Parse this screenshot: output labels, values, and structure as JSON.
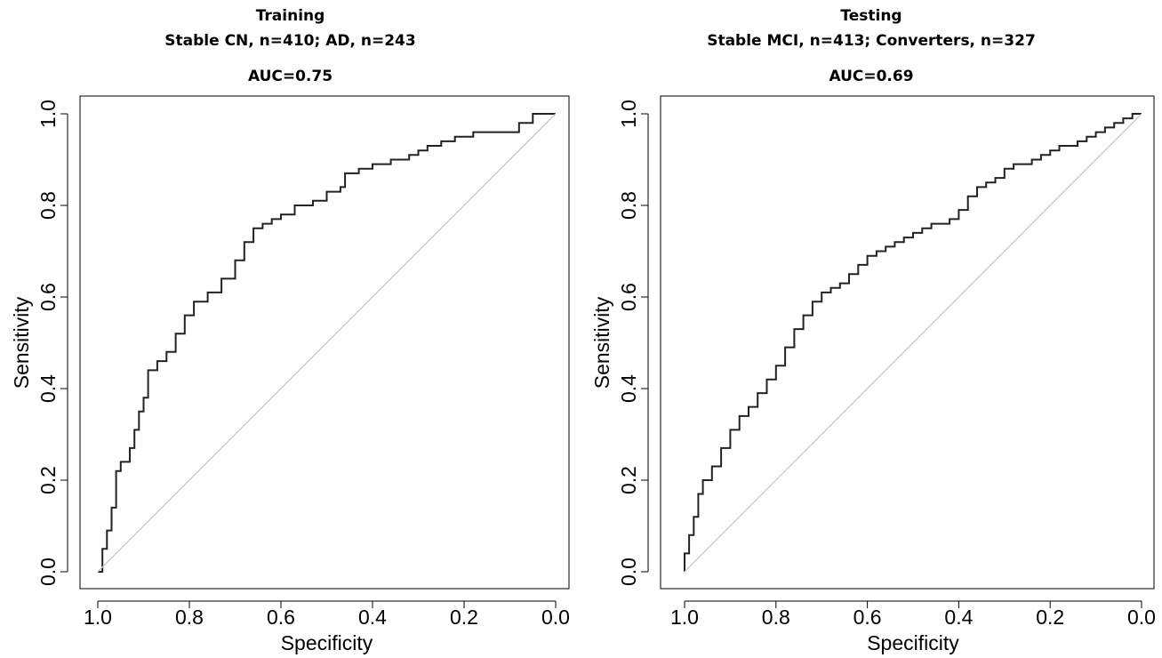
{
  "chart_data": [
    {
      "type": "line",
      "title": "Training",
      "subtitle": "Stable CN, n=410; AD, n=243",
      "annotation": "AUC=0.75",
      "xlabel": "Specificity",
      "ylabel": "Sensitivity",
      "xlim": [
        1.0,
        0.0
      ],
      "ylim": [
        0.0,
        1.0
      ],
      "x_ticks": [
        "1.0",
        "0.8",
        "0.6",
        "0.4",
        "0.2",
        "0.0"
      ],
      "y_ticks": [
        "0.0",
        "0.2",
        "0.4",
        "0.6",
        "0.8",
        "1.0"
      ],
      "x_reversed": true,
      "grid": false,
      "series": [
        {
          "role": "roc-curve",
          "color": "#222222",
          "x": [
            1.0,
            0.99,
            0.99,
            0.98,
            0.97,
            0.96,
            0.96,
            0.95,
            0.93,
            0.92,
            0.91,
            0.9,
            0.89,
            0.89,
            0.87,
            0.85,
            0.83,
            0.81,
            0.79,
            0.76,
            0.73,
            0.7,
            0.68,
            0.66,
            0.64,
            0.62,
            0.6,
            0.57,
            0.53,
            0.5,
            0.47,
            0.46,
            0.43,
            0.4,
            0.36,
            0.32,
            0.3,
            0.28,
            0.25,
            0.22,
            0.18,
            0.14,
            0.1,
            0.08,
            0.05,
            0.0
          ],
          "y": [
            0.0,
            0.02,
            0.05,
            0.09,
            0.14,
            0.2,
            0.22,
            0.24,
            0.27,
            0.31,
            0.35,
            0.38,
            0.4,
            0.44,
            0.46,
            0.48,
            0.52,
            0.56,
            0.59,
            0.61,
            0.64,
            0.68,
            0.72,
            0.75,
            0.76,
            0.77,
            0.78,
            0.8,
            0.81,
            0.83,
            0.84,
            0.87,
            0.88,
            0.89,
            0.9,
            0.91,
            0.92,
            0.93,
            0.94,
            0.95,
            0.96,
            0.96,
            0.96,
            0.98,
            1.0,
            1.0
          ]
        },
        {
          "role": "chance-diagonal",
          "color": "#c8c8c8",
          "x": [
            1.0,
            0.0
          ],
          "y": [
            0.0,
            1.0
          ]
        }
      ]
    },
    {
      "type": "line",
      "title": "Testing",
      "subtitle": "Stable MCI, n=413; Converters, n=327",
      "annotation": "AUC=0.69",
      "xlabel": "Specificity",
      "ylabel": "Sensitivity",
      "xlim": [
        1.0,
        0.0
      ],
      "ylim": [
        0.0,
        1.0
      ],
      "x_ticks": [
        "1.0",
        "0.8",
        "0.6",
        "0.4",
        "0.2",
        "0.0"
      ],
      "y_ticks": [
        "0.0",
        "0.2",
        "0.4",
        "0.6",
        "0.8",
        "1.0"
      ],
      "x_reversed": true,
      "grid": false,
      "series": [
        {
          "role": "roc-curve",
          "color": "#222222",
          "x": [
            1.0,
            1.0,
            0.99,
            0.98,
            0.97,
            0.96,
            0.94,
            0.92,
            0.9,
            0.88,
            0.86,
            0.84,
            0.82,
            0.8,
            0.78,
            0.76,
            0.74,
            0.72,
            0.7,
            0.68,
            0.66,
            0.64,
            0.62,
            0.6,
            0.58,
            0.56,
            0.54,
            0.52,
            0.5,
            0.48,
            0.46,
            0.44,
            0.42,
            0.4,
            0.38,
            0.36,
            0.34,
            0.32,
            0.3,
            0.28,
            0.26,
            0.24,
            0.22,
            0.2,
            0.18,
            0.16,
            0.14,
            0.12,
            0.1,
            0.08,
            0.06,
            0.04,
            0.02,
            0.0
          ],
          "y": [
            0.0,
            0.04,
            0.08,
            0.12,
            0.17,
            0.2,
            0.23,
            0.27,
            0.31,
            0.34,
            0.36,
            0.39,
            0.42,
            0.45,
            0.49,
            0.53,
            0.56,
            0.59,
            0.61,
            0.62,
            0.63,
            0.65,
            0.67,
            0.69,
            0.7,
            0.71,
            0.72,
            0.73,
            0.74,
            0.75,
            0.76,
            0.76,
            0.77,
            0.79,
            0.82,
            0.84,
            0.85,
            0.86,
            0.88,
            0.89,
            0.89,
            0.9,
            0.91,
            0.92,
            0.93,
            0.93,
            0.94,
            0.95,
            0.96,
            0.97,
            0.98,
            0.99,
            1.0,
            1.0
          ]
        },
        {
          "role": "chance-diagonal",
          "color": "#c8c8c8",
          "x": [
            1.0,
            0.0
          ],
          "y": [
            0.0,
            1.0
          ]
        }
      ]
    }
  ]
}
